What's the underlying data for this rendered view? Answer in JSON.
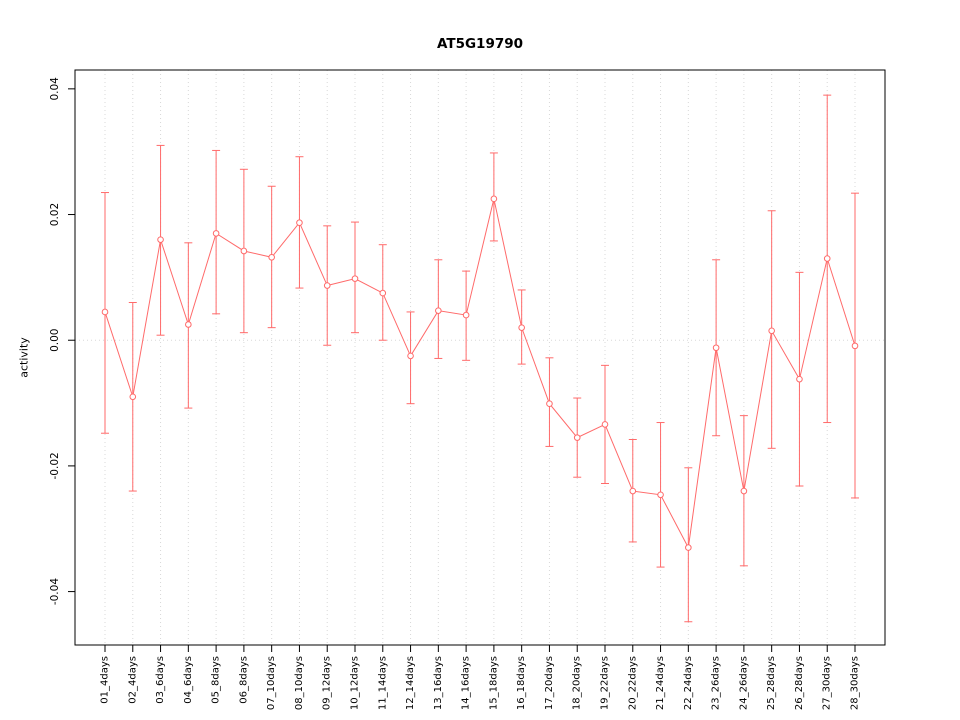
{
  "chart_data": {
    "type": "line",
    "title": "AT5G19790",
    "xlabel": "",
    "ylabel": "activity",
    "ylim": [
      -0.0485,
      0.043
    ],
    "yticks": [
      -0.04,
      -0.02,
      0,
      0.02,
      0.04
    ],
    "grid": "dotted vertical line at each category, dotted horizontal line at 0",
    "legend": "none",
    "point_style": "open-circle",
    "error_bars": true,
    "colors": {
      "series": "#ff6a6a",
      "grid": "#d8d8d8",
      "axis": "#000000",
      "background": "#ffffff"
    },
    "categories": [
      "01_4days",
      "02_4days",
      "03_6days",
      "04_6days",
      "05_8days",
      "06_8days",
      "07_10days",
      "08_10days",
      "09_12days",
      "10_12days",
      "11_14days",
      "12_14days",
      "13_16days",
      "14_16days",
      "15_18days",
      "16_18days",
      "17_20days",
      "18_20days",
      "19_22days",
      "20_22days",
      "21_24days",
      "22_24days",
      "23_26days",
      "24_26days",
      "25_28days",
      "26_28days",
      "27_30days",
      "28_30days"
    ],
    "series": [
      {
        "name": "AT5G19790 activity",
        "means": [
          0.0045,
          -0.009,
          0.016,
          0.0025,
          0.017,
          0.0142,
          0.0132,
          0.0187,
          0.0087,
          0.0098,
          0.0075,
          -0.0025,
          0.0047,
          0.004,
          0.0225,
          0.002,
          -0.0101,
          -0.0155,
          -0.0134,
          -0.024,
          -0.0246,
          -0.033,
          -0.0012,
          -0.024,
          0.0015,
          -0.0062,
          0.013,
          -0.0009
        ],
        "upper": [
          0.0235,
          0.006,
          0.031,
          0.0155,
          0.0302,
          0.0272,
          0.0245,
          0.0292,
          0.0182,
          0.0188,
          0.0152,
          0.0045,
          0.0128,
          0.011,
          0.0298,
          0.008,
          -0.0028,
          -0.0092,
          -0.004,
          -0.0158,
          -0.0131,
          -0.0203,
          0.0128,
          -0.012,
          0.0206,
          0.0108,
          0.039,
          0.0234
        ],
        "lower": [
          -0.0148,
          -0.024,
          0.0008,
          -0.0108,
          0.0042,
          0.0012,
          0.002,
          0.0083,
          -0.0008,
          0.0012,
          0.0,
          -0.0101,
          -0.0029,
          -0.0032,
          0.0158,
          -0.0038,
          -0.0169,
          -0.0218,
          -0.0228,
          -0.0321,
          -0.0361,
          -0.0448,
          -0.0152,
          -0.0359,
          -0.0172,
          -0.0232,
          -0.0131,
          -0.0251
        ]
      }
    ]
  }
}
